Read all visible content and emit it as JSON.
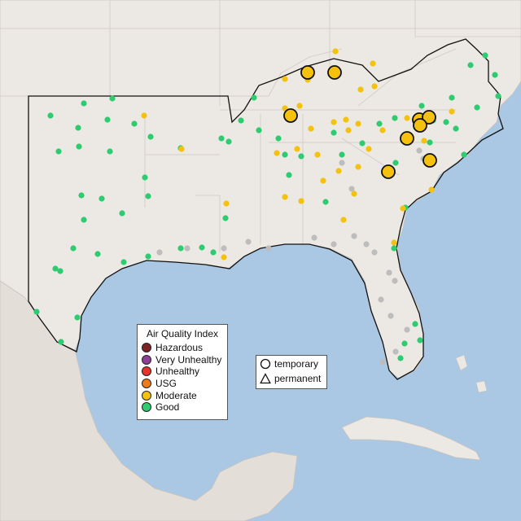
{
  "legend": {
    "title": "Air Quality Index",
    "categories": [
      {
        "label": "Hazardous",
        "color": "#7e2325"
      },
      {
        "label": "Very Unhealthy",
        "color": "#8f3f97"
      },
      {
        "label": "Unhealthy",
        "color": "#e8332b"
      },
      {
        "label": "USG",
        "color": "#f07b1a"
      },
      {
        "label": "Moderate",
        "color": "#f4c20d"
      },
      {
        "label": "Good",
        "color": "#2ecc71"
      }
    ]
  },
  "monitor_types": [
    {
      "label": "temporary",
      "icon": "circle-icon"
    },
    {
      "label": "permanent",
      "icon": "triangle-icon"
    }
  ],
  "colors": {
    "ocean": "#aac7e3",
    "land": "#ece8e3",
    "no_data": "#bdbdbd"
  }
}
